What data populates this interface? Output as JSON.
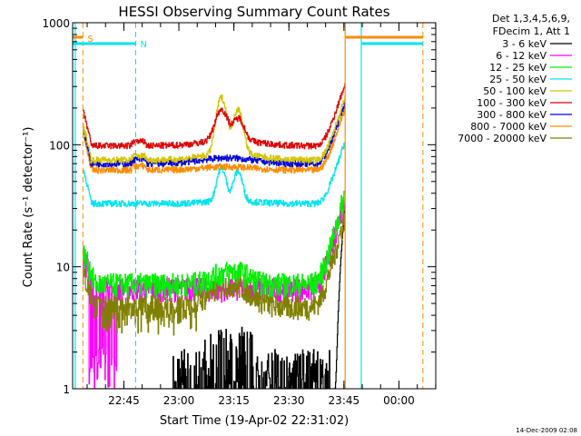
{
  "chart_data": {
    "type": "line",
    "title": "HESSI Observing Summary Count Rates",
    "xlabel": "Start Time (19-Apr-02 22:31:02)",
    "ylabel": "Count Rate (s⁻¹ detector⁻¹)",
    "y_scale": "log",
    "ylim": [
      1,
      1000
    ],
    "xlim_minutes_after_start": [
      0,
      99
    ],
    "x_ticks": [
      "22:45",
      "23:00",
      "23:15",
      "23:30",
      "23:45",
      "00:00"
    ],
    "y_ticks": [
      "1",
      "10",
      "100",
      "1000"
    ],
    "legend": {
      "position": "top-right",
      "header": [
        "Det 1,3,4,5,6,9,",
        "FDecim 1, Att 1"
      ]
    },
    "markers": [
      {
        "label": "S",
        "color": "#ff8c00"
      },
      {
        "label": "N",
        "color": "#00e5ee"
      }
    ],
    "footer_timestamp": "14-Dec-2009 02:08",
    "series": [
      {
        "name": "3 - 6 keV",
        "color": "#000000"
      },
      {
        "name": "6 - 12 keV",
        "color": "#ff00ff"
      },
      {
        "name": "12 - 25 keV",
        "color": "#00ee00"
      },
      {
        "name": "25 - 50 keV",
        "color": "#00e5ee"
      },
      {
        "name": "50 - 100 keV",
        "color": "#d4c400"
      },
      {
        "name": "100 - 300 keV",
        "color": "#e00000"
      },
      {
        "name": "300 - 800 keV",
        "color": "#0000dd"
      },
      {
        "name": "800 - 7000 keV",
        "color": "#ff8c00"
      },
      {
        "name": "7000 - 20000 keV",
        "color": "#808000"
      }
    ]
  }
}
